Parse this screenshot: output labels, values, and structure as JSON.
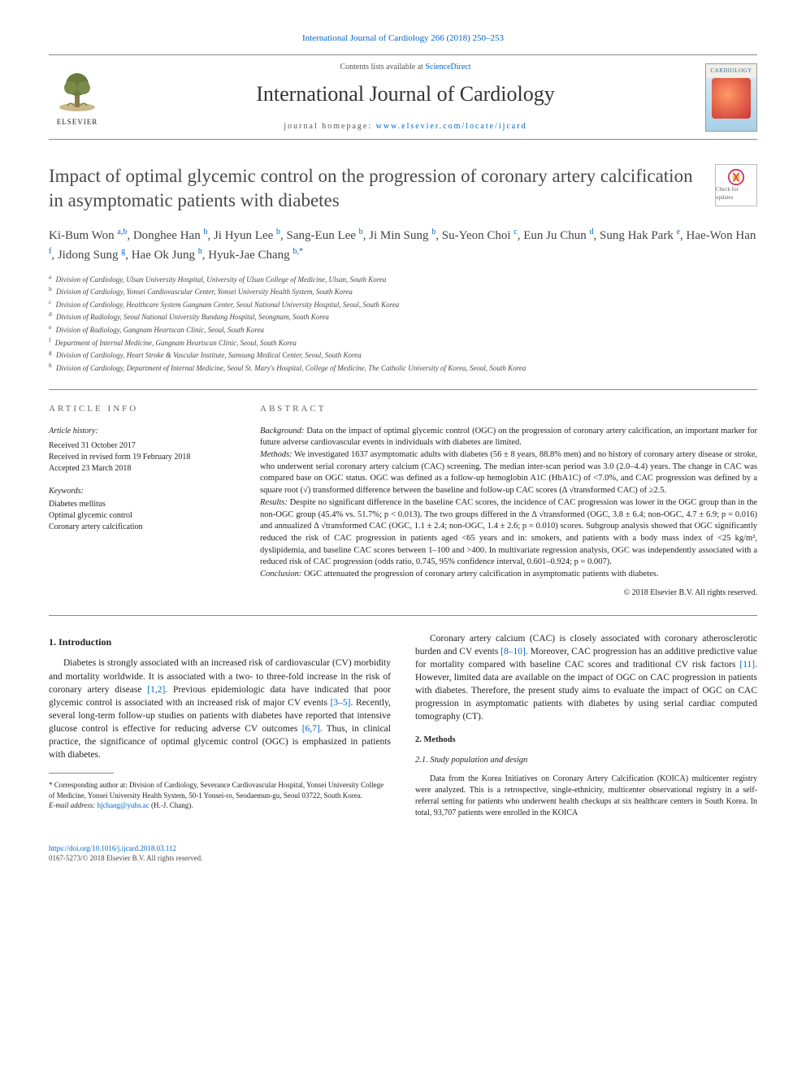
{
  "top_citation": "International Journal of Cardiology 266 (2018) 250–253",
  "header": {
    "contents_prefix": "Contents lists available at ",
    "contents_link": "ScienceDirect",
    "journal_name": "International Journal of Cardiology",
    "homepage_prefix": "journal homepage: ",
    "homepage_link": "www.elsevier.com/locate/ijcard",
    "publisher_name": "ELSEVIER",
    "cover_label": "CARDIOLOGY"
  },
  "updates_badge": "Check for updates",
  "title": "Impact of optimal glycemic control on the progression of coronary artery calcification in asymptomatic patients with diabetes",
  "authors_html": "Ki-Bum Won <sup>a,b</sup>, Donghee Han <sup>b</sup>, Ji Hyun Lee <sup>b</sup>, Sang-Eun Lee <sup>b</sup>, Ji Min Sung <sup>b</sup>, Su-Yeon Choi <sup>c</sup>, Eun Ju Chun <sup>d</sup>, Sung Hak Park <sup>e</sup>, Hae-Won Han <sup>f</sup>, Jidong Sung <sup>g</sup>, Hae Ok Jung <sup>h</sup>, Hyuk-Jae Chang <sup>b,*</sup>",
  "affiliations": [
    {
      "sup": "a",
      "text": "Division of Cardiology, Ulsan University Hospital, University of Ulsan College of Medicine, Ulsan, South Korea"
    },
    {
      "sup": "b",
      "text": "Division of Cardiology, Yonsei Cardiovascular Center, Yonsei University Health System, South Korea"
    },
    {
      "sup": "c",
      "text": "Division of Cardiology, Healthcare System Gangnam Center, Seoul National University Hospital, Seoul, South Korea"
    },
    {
      "sup": "d",
      "text": "Division of Radiology, Seoul National University Bundang Hospital, Seongnam, South Korea"
    },
    {
      "sup": "e",
      "text": "Division of Radiology, Gangnam Heartscan Clinic, Seoul, South Korea"
    },
    {
      "sup": "f",
      "text": "Department of Internal Medicine, Gangnam Heartscan Clinic, Seoul, South Korea"
    },
    {
      "sup": "g",
      "text": "Division of Cardiology, Heart Stroke & Vascular Institute, Samsung Medical Center, Seoul, South Korea"
    },
    {
      "sup": "h",
      "text": "Division of Cardiology, Department of Internal Medicine, Seoul St. Mary's Hospital, College of Medicine, The Catholic University of Korea, Seoul, South Korea"
    }
  ],
  "article_info": {
    "heading": "article info",
    "history_label": "Article history:",
    "history": [
      "Received 31 October 2017",
      "Received in revised form 19 February 2018",
      "Accepted 23 March 2018"
    ],
    "keywords_label": "Keywords:",
    "keywords": [
      "Diabetes mellitus",
      "Optimal glycemic control",
      "Coronary artery calcification"
    ]
  },
  "abstract": {
    "heading": "abstract",
    "background_label": "Background:",
    "background": " Data on the impact of optimal glycemic control (OGC) on the progression of coronary artery calcification, an important marker for future adverse cardiovascular events in individuals with diabetes are limited.",
    "methods_label": "Methods:",
    "methods": " We investigated 1637 asymptomatic adults with diabetes (56 ± 8 years, 88.8% men) and no history of coronary artery disease or stroke, who underwent serial coronary artery calcium (CAC) screening. The median inter-scan period was 3.0 (2.0–4.4) years. The change in CAC was compared base on OGC status. OGC was defined as a follow-up hemoglobin A1C (HbA1C) of <7.0%, and CAC progression was defined by a square root (√) transformed difference between the baseline and follow-up CAC scores (Δ √transformed CAC) of ≥2.5.",
    "results_label": "Results:",
    "results": " Despite no significant difference in the baseline CAC scores, the incidence of CAC progression was lower in the OGC group than in the non-OGC group (45.4% vs. 51.7%; p < 0.013). The two groups differed in the Δ √transformed (OGC, 3.8 ± 6.4; non-OGC, 4.7 ± 6.9; p = 0.016) and annualized Δ √transformed CAC (OGC, 1.1 ± 2.4; non-OGC, 1.4 ± 2.6; p = 0.010) scores. Subgroup analysis showed that OGC significantly reduced the risk of CAC progression in patients aged <65 years and in: smokers, and patients with a body mass index of <25 kg/m², dyslipidemia, and baseline CAC scores between 1–100 and >400. In multivariate regression analysis, OGC was independently associated with a reduced risk of CAC progression (odds ratio, 0.745, 95% confidence interval, 0.601–0.924; p = 0.007).",
    "conclusion_label": "Conclusion:",
    "conclusion": " OGC attenuated the progression of coronary artery calcification in asymptomatic patients with diabetes.",
    "copyright": "© 2018 Elsevier B.V. All rights reserved."
  },
  "body": {
    "intro_heading": "1. Introduction",
    "intro_p1": "Diabetes is strongly associated with an increased risk of cardiovascular (CV) morbidity and mortality worldwide. It is associated with a two- to three-fold increase in the risk of coronary artery disease [1,2]. Previous epidemiologic data have indicated that poor glycemic control is associated with an increased risk of major CV events [3–5]. Recently, several long-term follow-up studies on patients with diabetes have reported that intensive glucose control is effective for reducing adverse CV outcomes [6,7]. Thus, in clinical practice, the significance of optimal glycemic control (OGC) is emphasized in patients with diabetes.",
    "intro_p2": "Coronary artery calcium (CAC) is closely associated with coronary atherosclerotic burden and CV events [8–10]. Moreover, CAC progression has an additive predictive value for mortality compared with baseline CAC scores and traditional CV risk factors [11]. However, limited data are available on the impact of OGC on CAC progression in patients with diabetes. Therefore, the present study aims to evaluate the impact of OGC on CAC progression in asymptomatic patients with diabetes by using serial cardiac computed tomography (CT).",
    "methods_heading": "2. Methods",
    "methods_sub1": "2.1. Study population and design",
    "methods_p1": "Data from the Korea Initiatives on Coronary Artery Calcification (KOICA) multicenter registry were analyzed. This is a retrospective, single-ethnicity, multicenter observational registry in a self-referral setting for patients who underwent health checkups at six healthcare centers in South Korea. In total, 93,707 patients were enrolled in the KOICA"
  },
  "footnote": {
    "corr_label": "* Corresponding author at: Division of Cardiology, Severance Cardiovascular Hospital, Yonsei University College of Medicine, Yonsei University Health System, 50-1 Yonsei-ro, Seodaemun-gu, Seoul 03722, South Korea.",
    "email_label": "E-mail address: ",
    "email": "hjchang@yuhs.ac",
    "email_suffix": " (H.-J. Chang)."
  },
  "footer": {
    "doi": "https://doi.org/10.1016/j.ijcard.2018.03.112",
    "issn_line": "0167-5273/© 2018 Elsevier B.V. All rights reserved."
  },
  "colors": {
    "link": "#0066cc",
    "text": "#222222",
    "heading_gray": "#4a4a4a",
    "border": "#888888"
  }
}
